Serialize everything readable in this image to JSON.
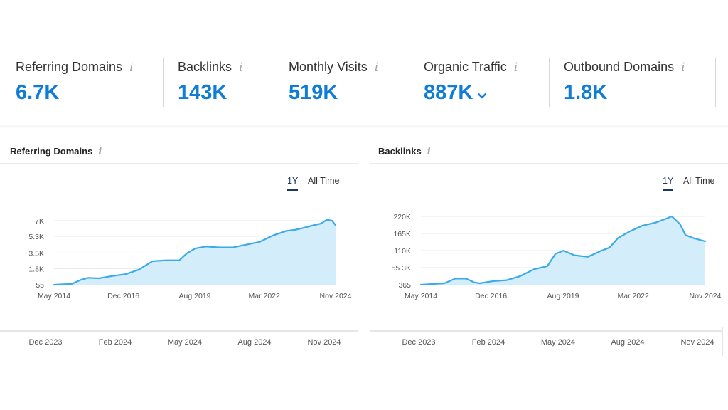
{
  "metrics": [
    {
      "label": "Referring Domains",
      "value": "6.7K",
      "info": "i",
      "has_dropdown": false
    },
    {
      "label": "Backlinks",
      "value": "143K",
      "info": "i",
      "has_dropdown": false
    },
    {
      "label": "Monthly Visits",
      "value": "519K",
      "info": "i",
      "has_dropdown": false
    },
    {
      "label": "Organic Traffic",
      "value": "887K",
      "info": "i",
      "has_dropdown": true
    },
    {
      "label": "Outbound Domains",
      "value": "1.8K",
      "info": "i",
      "has_dropdown": false
    }
  ],
  "colors": {
    "accent": "#0f7cd8",
    "line": "#3aaae8",
    "area": "#d4edfb",
    "grid": "#e6e8ec",
    "tab_active": "#1a3966"
  },
  "panels": [
    {
      "title": "Referring Domains",
      "info": "i",
      "tabs": [
        {
          "label": "1Y",
          "active": true
        },
        {
          "label": "All Time",
          "active": false
        }
      ],
      "timeline": [
        "Dec 2023",
        "Feb 2024",
        "May 2024",
        "Aug 2024",
        "Nov 2024"
      ]
    },
    {
      "title": "Backlinks",
      "info": "i",
      "tabs": [
        {
          "label": "1Y",
          "active": true
        },
        {
          "label": "All Time",
          "active": false
        }
      ],
      "timeline": [
        "Dec 2023",
        "Feb 2024",
        "May 2024",
        "Aug 2024",
        "Nov 2024"
      ]
    }
  ],
  "chart_data": [
    {
      "type": "area",
      "title": "Referring Domains",
      "ytick_labels": [
        "7K",
        "5.3K",
        "3.5K",
        "1.8K",
        "55"
      ],
      "yticks": [
        7000,
        5300,
        3500,
        1800,
        55
      ],
      "ylim": [
        55,
        7000
      ],
      "xtick_labels": [
        "May 2014",
        "Dec 2016",
        "Aug 2019",
        "Mar 2022",
        "Nov 2024"
      ],
      "xticks": [
        2014.33,
        2016.92,
        2019.58,
        2022.17,
        2024.83
      ],
      "xlim": [
        2014.33,
        2024.83
      ],
      "x": [
        2014.33,
        2015.0,
        2015.3,
        2015.6,
        2016.0,
        2016.5,
        2017.0,
        2017.5,
        2018.0,
        2018.5,
        2019.0,
        2019.3,
        2019.6,
        2020.0,
        2020.5,
        2021.0,
        2021.5,
        2022.0,
        2022.5,
        2023.0,
        2023.3,
        2023.6,
        2024.0,
        2024.3,
        2024.5,
        2024.7,
        2024.83
      ],
      "y": [
        55,
        150,
        550,
        800,
        750,
        1000,
        1200,
        1700,
        2600,
        2700,
        2700,
        3500,
        4000,
        4200,
        4100,
        4100,
        4400,
        4700,
        5400,
        5900,
        6000,
        6200,
        6500,
        6700,
        7100,
        7000,
        6500
      ]
    },
    {
      "type": "area",
      "title": "Backlinks",
      "ytick_labels": [
        "220K",
        "165K",
        "110K",
        "55.3K",
        "365"
      ],
      "yticks": [
        220000,
        165000,
        110000,
        55300,
        365
      ],
      "ylim": [
        365,
        220000
      ],
      "xtick_labels": [
        "May 2014",
        "Dec 2016",
        "Aug 2019",
        "Mar 2022",
        "Nov 2024"
      ],
      "xticks": [
        2014.33,
        2016.92,
        2019.58,
        2022.17,
        2024.83
      ],
      "xlim": [
        2014.33,
        2024.83
      ],
      "x": [
        2014.33,
        2015.2,
        2015.6,
        2016.0,
        2016.3,
        2016.5,
        2017.0,
        2017.5,
        2018.0,
        2018.5,
        2019.0,
        2019.3,
        2019.6,
        2020.0,
        2020.5,
        2021.0,
        2021.3,
        2021.6,
        2022.0,
        2022.5,
        2023.0,
        2023.3,
        2023.6,
        2023.9,
        2024.1,
        2024.4,
        2024.83
      ],
      "y": [
        365,
        5000,
        20000,
        20000,
        8000,
        5000,
        12000,
        15000,
        28000,
        50000,
        60000,
        100000,
        110000,
        95000,
        90000,
        110000,
        120000,
        150000,
        170000,
        190000,
        200000,
        210000,
        220000,
        195000,
        160000,
        150000,
        140000
      ]
    }
  ]
}
